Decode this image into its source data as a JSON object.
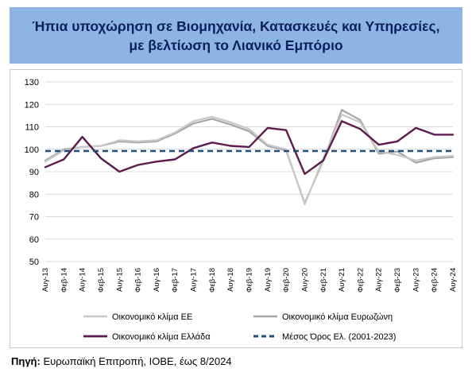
{
  "header": {
    "title_line1": "Ήπια υποχώρηση σε Βιομηχανία, Κατασκευές και Υπηρεσίες,",
    "title_line2": "με βελτίωση το Λιανικό Εμπόριο"
  },
  "source": {
    "label": "Πηγή:",
    "text": " Ευρωπαϊκή Επιτροπή, ΙΟΒΕ, έως 8/2024"
  },
  "colors": {
    "eu": "#a6a6a6",
    "ez": "#c8c8c8",
    "greece": "#5c1a4d",
    "mean": "#1f4e79",
    "title_bg": "#8eb4e3",
    "title_text": "#0b1f5c"
  },
  "chart_data": {
    "type": "line",
    "ylim": [
      50,
      130
    ],
    "yticks": [
      50,
      60,
      70,
      80,
      90,
      100,
      110,
      120,
      130
    ],
    "x": [
      "Αυγ-13",
      "Φεβ-14",
      "Αυγ-14",
      "Φεβ-15",
      "Αυγ-15",
      "Φεβ-16",
      "Αυγ-16",
      "Φεβ-17",
      "Αυγ-17",
      "Φεβ-18",
      "Αυγ-18",
      "Φεβ-19",
      "Αυγ-19",
      "Φεβ-20",
      "Αυγ-20",
      "Φεβ-21",
      "Αυγ-21",
      "Φεβ-22",
      "Αυγ-22",
      "Φεβ-23",
      "Αυγ-23",
      "Φεβ-24",
      "Αυγ-24"
    ],
    "grid": true,
    "legend_position": "bottom",
    "series": [
      {
        "name": "Οικονομικό κλίμα ΕΕ",
        "values": [
          94.5,
          99.5,
          101.0,
          101.5,
          104.0,
          103.5,
          104.0,
          107.5,
          112.5,
          114.5,
          112.0,
          109.0,
          102.0,
          100.0,
          75.5,
          96.0,
          115.5,
          112.0,
          99.0,
          97.5,
          95.0,
          96.5,
          97.0
        ]
      },
      {
        "name": "Οικονομικό κλίμα Ευρωζώνη",
        "values": [
          95.0,
          100.0,
          101.0,
          101.5,
          103.5,
          103.0,
          103.5,
          107.0,
          111.5,
          113.5,
          111.0,
          108.0,
          101.5,
          99.5,
          76.0,
          95.0,
          117.5,
          113.0,
          98.0,
          99.0,
          94.0,
          96.0,
          96.5
        ]
      },
      {
        "name": "Οικονομικό κλίμα Ελλάδα",
        "values": [
          92.0,
          95.5,
          105.5,
          96.0,
          90.0,
          93.0,
          94.5,
          95.5,
          100.5,
          103.0,
          101.5,
          101.0,
          109.5,
          108.5,
          89.0,
          95.0,
          112.5,
          109.0,
          102.0,
          103.5,
          109.5,
          106.5,
          106.5
        ]
      },
      {
        "name": "Μέσος Όρος Ελ. (2001-2023)",
        "values": [
          99.2,
          99.2,
          99.2,
          99.2,
          99.2,
          99.2,
          99.2,
          99.2,
          99.2,
          99.2,
          99.2,
          99.2,
          99.2,
          99.2,
          99.2,
          99.2,
          99.2,
          99.2,
          99.2,
          99.2,
          99.2,
          99.2,
          99.2
        ]
      }
    ]
  }
}
